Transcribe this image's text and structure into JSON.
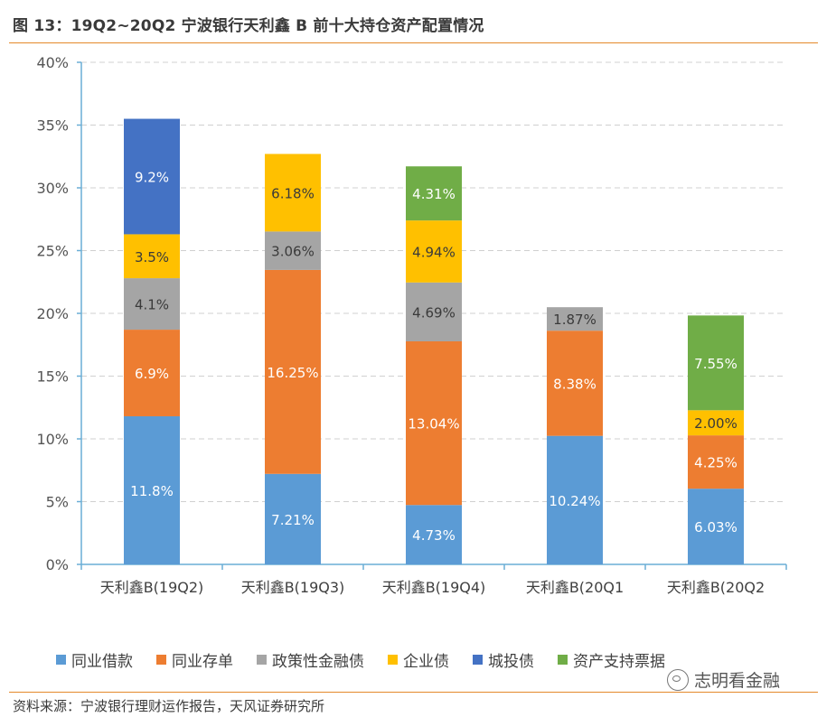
{
  "title": "图 13：19Q2~20Q2 宁波银行天利鑫 B 前十大持仓资产配置情况",
  "source": "资料来源：宁波银行理财运作报告，天风证券研究所",
  "watermark": "志明看金融",
  "chart_data": {
    "type": "bar",
    "stacked": true,
    "categories": [
      "天利鑫B(19Q2)",
      "天利鑫B(19Q3)",
      "天利鑫B(19Q4)",
      "天利鑫B(20Q1",
      "天利鑫B(20Q2"
    ],
    "ylim": [
      0,
      40
    ],
    "yticks": [
      0,
      5,
      10,
      15,
      20,
      25,
      30,
      35,
      40
    ],
    "ytick_labels": [
      "0%",
      "5%",
      "10%",
      "15%",
      "20%",
      "25%",
      "30%",
      "35%",
      "40%"
    ],
    "grid": "horizontal dashed",
    "legend_position": "bottom",
    "series": [
      {
        "name": "同业借款",
        "color": "#5b9bd5",
        "values": [
          11.8,
          7.21,
          4.73,
          10.24,
          6.03
        ],
        "labels": [
          "11.8%",
          "7.21%",
          "4.73%",
          "10.24%",
          "6.03%"
        ]
      },
      {
        "name": "同业存单",
        "color": "#ed7d31",
        "values": [
          6.9,
          16.25,
          13.04,
          8.38,
          4.25
        ],
        "labels": [
          "6.9%",
          "16.25%",
          "13.04%",
          "8.38%",
          "4.25%"
        ]
      },
      {
        "name": "政策性金融债",
        "color": "#a5a5a5",
        "values": [
          4.1,
          3.06,
          4.69,
          1.87,
          null
        ],
        "labels": [
          "4.1%",
          "3.06%",
          "4.69%",
          "1.87%",
          null
        ]
      },
      {
        "name": "企业债",
        "color": "#ffc000",
        "values": [
          3.5,
          6.18,
          4.94,
          null,
          2.0
        ],
        "labels": [
          "3.5%",
          "6.18%",
          "4.94%",
          null,
          "2.00%"
        ]
      },
      {
        "name": "城投债",
        "color": "#4472c4",
        "values": [
          9.2,
          null,
          null,
          null,
          null
        ],
        "labels": [
          "9.2%",
          null,
          null,
          null,
          null
        ]
      },
      {
        "name": "资产支持票据",
        "color": "#70ad47",
        "values": [
          null,
          null,
          4.31,
          null,
          7.55
        ],
        "labels": [
          null,
          null,
          "4.31%",
          null,
          "7.55%"
        ]
      }
    ]
  }
}
